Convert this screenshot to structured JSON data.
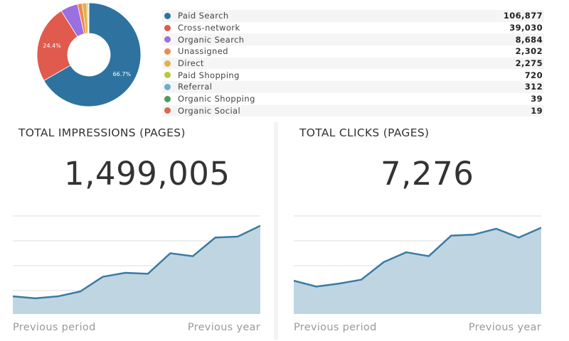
{
  "colors": {
    "area_fill": "#c0d5e2",
    "area_line": "#3a7ba4",
    "grid": "#dddddd"
  },
  "chart_data": [
    {
      "type": "pie",
      "style": "donut",
      "title": "",
      "categories": [
        "Paid Search",
        "Cross-network",
        "Organic Search",
        "Unassigned",
        "Direct",
        "Paid Shopping",
        "Referral",
        "Organic Shopping",
        "Organic Social"
      ],
      "values": [
        106877,
        39030,
        8684,
        2302,
        2275,
        720,
        312,
        39,
        19
      ],
      "value_labels": [
        "106,877",
        "39,030",
        "8,684",
        "2,302",
        "2,275",
        "720",
        "312",
        "39",
        "19"
      ],
      "colors": [
        "#2e73a0",
        "#e05a4e",
        "#9a6fe0",
        "#ee8a4a",
        "#e3b04a",
        "#b8c93a",
        "#6aaed0",
        "#4c9a5c",
        "#d9684e"
      ],
      "slice_labels": [
        "66.7%",
        "24.4%",
        "",
        "",
        "",
        "",
        "",
        "",
        ""
      ]
    },
    {
      "type": "area",
      "title": "TOTAL IMPRESSIONS (PAGES)",
      "total": "1,499,005",
      "x_start_label": "Previous period",
      "x_end_label": "Previous year",
      "values": [
        18,
        16,
        18,
        23,
        38,
        42,
        41,
        62,
        59,
        78,
        79,
        90
      ],
      "ylim": [
        0,
        100
      ],
      "grid": true
    },
    {
      "type": "area",
      "title": "TOTAL CLICKS (PAGES)",
      "total": "7,276",
      "x_start_label": "Previous period",
      "x_end_label": "Previous year",
      "values": [
        34,
        28,
        31,
        35,
        53,
        63,
        59,
        80,
        81,
        87,
        78,
        88
      ],
      "ylim": [
        0,
        100
      ],
      "grid": true
    }
  ]
}
